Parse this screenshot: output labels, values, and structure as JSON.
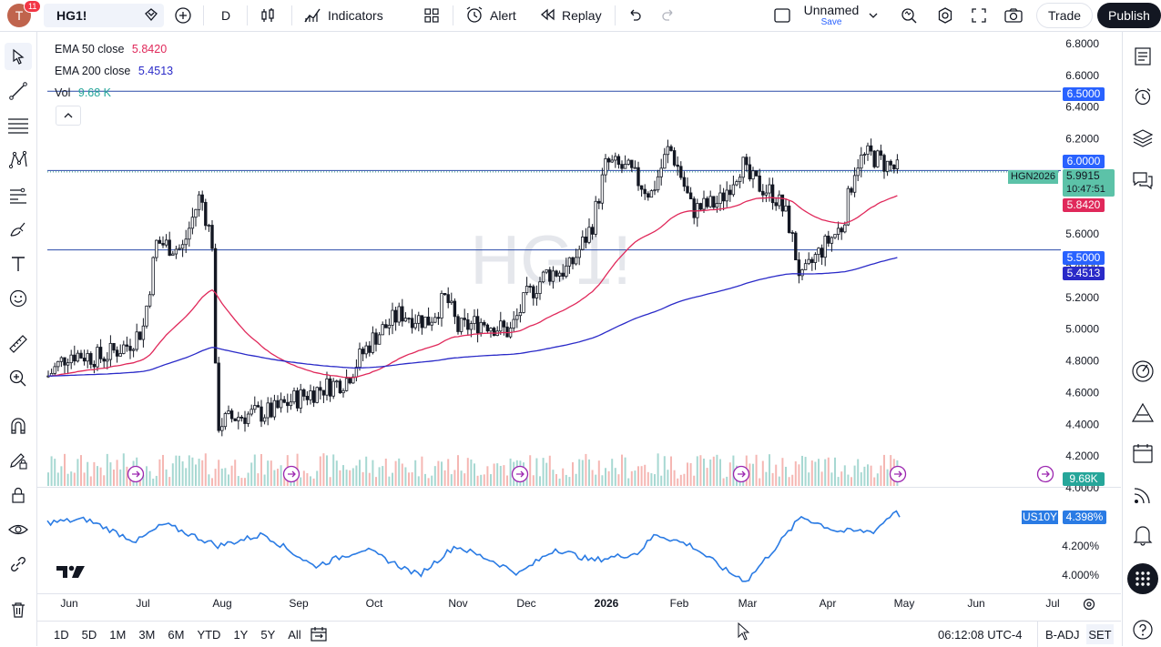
{
  "toolbar": {
    "avatar_letter": "T",
    "avatar_badge": "11",
    "symbol": "HG1!",
    "interval": "D",
    "indicators_label": "Indicators",
    "alert_label": "Alert",
    "replay_label": "Replay",
    "layout_name": "Unnamed",
    "layout_save": "Save",
    "trade_label": "Trade",
    "publish_label": "Publish"
  },
  "legend": {
    "ema50_label": "EMA 50 close",
    "ema50_value": "5.8420",
    "ema200_label": "EMA 200 close",
    "ema200_value": "5.4513",
    "vol_label": "Vol",
    "vol_value": "9.68 K"
  },
  "watermark": "HG1!",
  "price_axis": {
    "ticks": [
      "6.8000",
      "6.6000",
      "6.4000",
      "6.2000",
      "5.6000",
      "5.4000",
      "5.2000",
      "5.0000",
      "4.8000",
      "4.6000",
      "4.4000",
      "4.2000",
      "4.0000"
    ],
    "labels": {
      "level_high": "6.5000",
      "level_round": "6.0000",
      "symbol_tag": "HGN2026",
      "last_price": "5.9915",
      "countdown": "10:47:51",
      "ema50": "5.8420",
      "level_low": "5.5000",
      "ema200": "5.4513",
      "volume": "9.68K"
    },
    "colors": {
      "last": "#5cc2a8",
      "ema50": "#e0285a",
      "ema200": "#2a2ac8",
      "level": "#2962ff",
      "volume": "#26a69a"
    }
  },
  "lower_pane": {
    "symbol_tag": "US10Y",
    "value": "4.398%",
    "ticks": [
      "4.200%",
      "4.000%"
    ],
    "line_color": "#2a7be4"
  },
  "time_axis": {
    "labels": [
      "Jun",
      "Jul",
      "Aug",
      "Sep",
      "Oct",
      "Nov",
      "Dec",
      "2026",
      "Feb",
      "Mar",
      "Apr",
      "May",
      "Jun",
      "Jul"
    ]
  },
  "bottombar": {
    "ranges": [
      "1D",
      "5D",
      "1M",
      "3M",
      "6M",
      "YTD",
      "1Y",
      "5Y",
      "All"
    ],
    "clock": "06:12:08 UTC-4",
    "badj": "B-ADJ",
    "set": "SET"
  },
  "chart_data": {
    "type": "candlestick",
    "symbol": "HG1!",
    "interval": "D",
    "horizontal_levels": [
      6.5,
      6.0,
      5.5
    ],
    "x": [
      "Jun",
      "Jul",
      "Aug",
      "Sep",
      "Oct",
      "Nov",
      "Dec",
      "2026",
      "Feb",
      "Mar",
      "Apr",
      "May"
    ],
    "close_approx": [
      4.85,
      5.55,
      4.4,
      4.6,
      4.95,
      5.15,
      5.15,
      6.05,
      6.0,
      5.9,
      5.55,
      5.99
    ],
    "ema50_last": 5.842,
    "ema200_last": 5.4513,
    "last_price": 5.9915,
    "volume_last": "9.68K",
    "lower_pane": {
      "name": "US10Y",
      "last": 4.398,
      "unit": "%",
      "ylim": [
        3.95,
        4.45
      ]
    },
    "ylim": [
      4.15,
      6.85
    ]
  }
}
